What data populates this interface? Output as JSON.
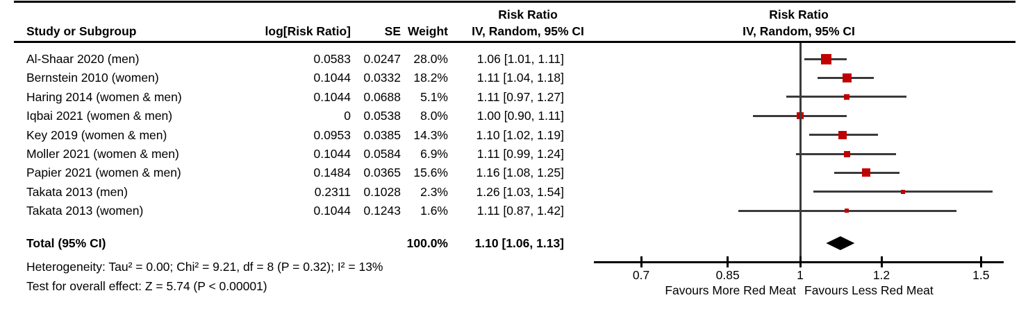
{
  "header": {
    "col_study": "Study or Subgroup",
    "col_log_rr": "log[Risk Ratio]",
    "col_se": "SE",
    "col_weight": "Weight",
    "col_ci_top": "Risk Ratio",
    "col_ci_bottom": "IV, Random, 95% CI",
    "plot_top": "Risk Ratio",
    "plot_bottom": "IV, Random, 95% CI"
  },
  "chart_data": {
    "type": "forest",
    "scale": "log",
    "x_ticks": [
      0.7,
      0.85,
      1,
      1.2,
      1.5
    ],
    "x_tick_labels": [
      "0.7",
      "0.85",
      "1",
      "1.2",
      "1.5"
    ],
    "favours_left": "Favours More Red Meat",
    "favours_right": "Favours Less Red Meat",
    "studies": [
      {
        "name": "Al-Shaar 2020 (men)",
        "log_rr": "0.0583",
        "se": "0.0247",
        "weight": "28.0%",
        "weight_value": 28.0,
        "rr": 1.06,
        "ci_low": 1.01,
        "ci_high": 1.11,
        "ci_text": "1.06 [1.01, 1.11]"
      },
      {
        "name": "Bernstein 2010 (women)",
        "log_rr": "0.1044",
        "se": "0.0332",
        "weight": "18.2%",
        "weight_value": 18.2,
        "rr": 1.11,
        "ci_low": 1.04,
        "ci_high": 1.18,
        "ci_text": "1.11 [1.04, 1.18]"
      },
      {
        "name": "Haring 2014 (women & men)",
        "log_rr": "0.1044",
        "se": "0.0688",
        "weight": "5.1%",
        "weight_value": 5.1,
        "rr": 1.11,
        "ci_low": 0.97,
        "ci_high": 1.27,
        "ci_text": "1.11 [0.97, 1.27]"
      },
      {
        "name": "Iqbai 2021 (women & men)",
        "log_rr": "0",
        "se": "0.0538",
        "weight": "8.0%",
        "weight_value": 8.0,
        "rr": 1.0,
        "ci_low": 0.9,
        "ci_high": 1.11,
        "ci_text": "1.00 [0.90, 1.11]"
      },
      {
        "name": "Key 2019 (women & men)",
        "log_rr": "0.0953",
        "se": "0.0385",
        "weight": "14.3%",
        "weight_value": 14.3,
        "rr": 1.1,
        "ci_low": 1.02,
        "ci_high": 1.19,
        "ci_text": "1.10 [1.02, 1.19]"
      },
      {
        "name": "Moller 2021 (women & men)",
        "log_rr": "0.1044",
        "se": "0.0584",
        "weight": "6.9%",
        "weight_value": 6.9,
        "rr": 1.11,
        "ci_low": 0.99,
        "ci_high": 1.24,
        "ci_text": "1.11 [0.99, 1.24]"
      },
      {
        "name": "Papier 2021 (women & men)",
        "log_rr": "0.1484",
        "se": "0.0365",
        "weight": "15.6%",
        "weight_value": 15.6,
        "rr": 1.16,
        "ci_low": 1.08,
        "ci_high": 1.25,
        "ci_text": "1.16 [1.08, 1.25]"
      },
      {
        "name": "Takata 2013 (men)",
        "log_rr": "0.2311",
        "se": "0.1028",
        "weight": "2.3%",
        "weight_value": 2.3,
        "rr": 1.26,
        "ci_low": 1.03,
        "ci_high": 1.54,
        "ci_text": "1.26 [1.03, 1.54]"
      },
      {
        "name": "Takata 2013 (women)",
        "log_rr": "0.1044",
        "se": "0.1243",
        "weight": "1.6%",
        "weight_value": 1.6,
        "rr": 1.11,
        "ci_low": 0.87,
        "ci_high": 1.42,
        "ci_text": "1.11 [0.87, 1.42]"
      }
    ],
    "total": {
      "label": "Total (95% CI)",
      "weight": "100.0%",
      "rr": 1.1,
      "ci_low": 1.06,
      "ci_high": 1.13,
      "ci_text": "1.10 [1.06, 1.13]"
    }
  },
  "footer": {
    "heterogeneity": "Heterogeneity: Tau² = 0.00; Chi² = 9.21, df = 8 (P = 0.32); I² = 13%",
    "overall_effect": "Test for overall effect: Z = 5.74 (P < 0.00001)"
  },
  "colors": {
    "square": "#c00000",
    "diamond": "#000000",
    "line": "#3a3a3a",
    "rule": "#000000"
  }
}
